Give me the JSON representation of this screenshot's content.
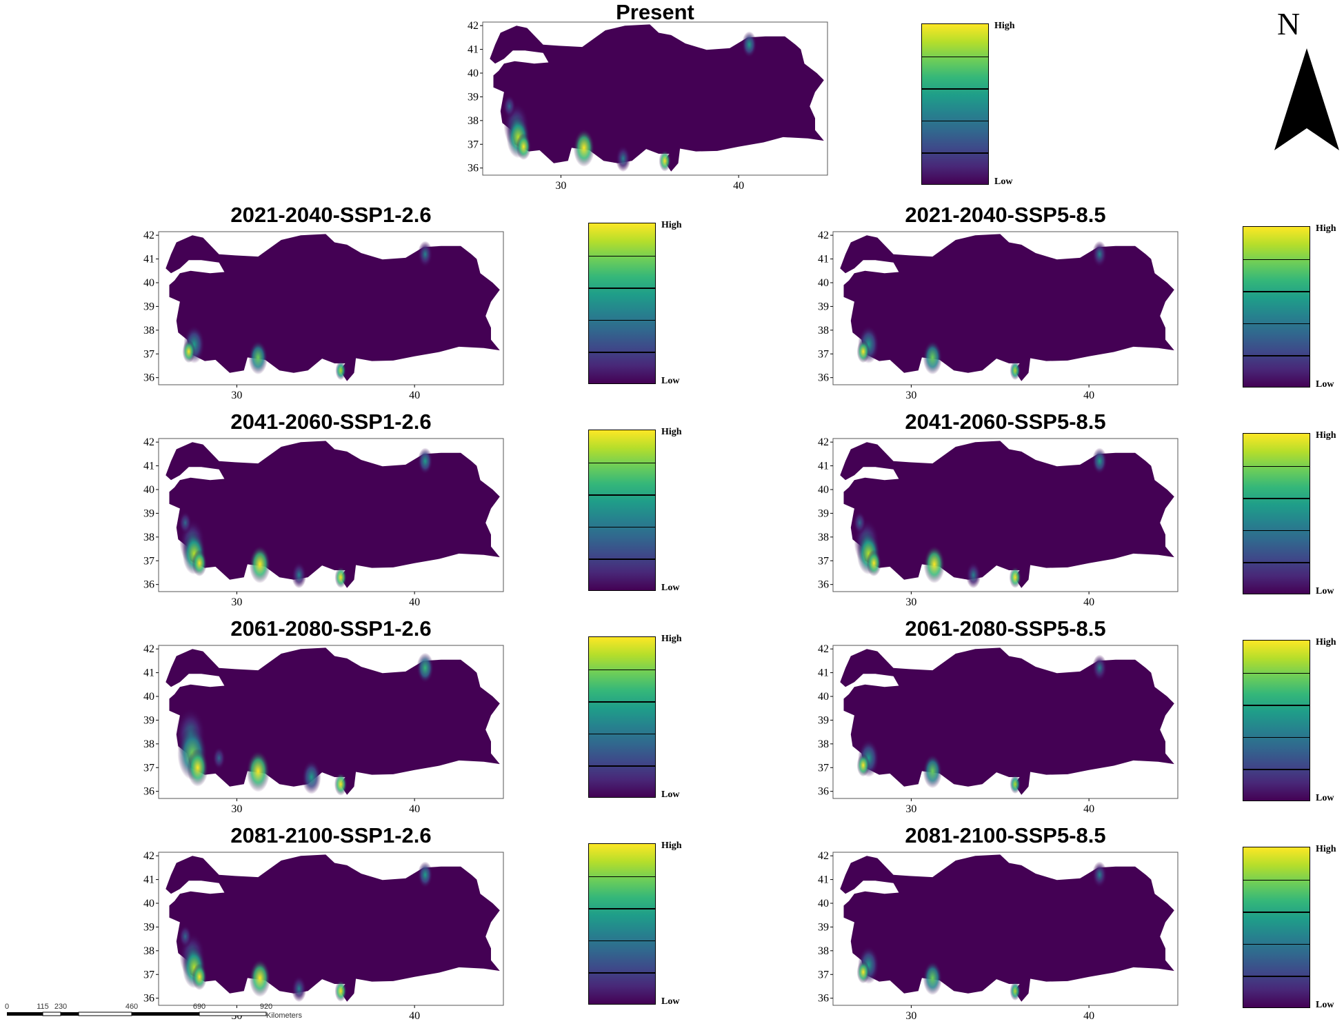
{
  "north_label": "N",
  "colors": {
    "background": "#440154",
    "ramp": [
      "#fde725",
      "#b5de2b",
      "#6ece58",
      "#35b779",
      "#1f9e89",
      "#26828e",
      "#31688e",
      "#3e4989",
      "#482878",
      "#440154"
    ]
  },
  "legend": {
    "high": "High",
    "low": "Low"
  },
  "axes": {
    "lat_ticks": [
      "42",
      "41",
      "40",
      "39",
      "38",
      "37",
      "36"
    ],
    "lon_ticks": [
      "30",
      "40"
    ]
  },
  "panels": [
    {
      "title": "Present",
      "suitability": "medium"
    },
    {
      "title": "2021-2040-SSP1-2.6",
      "suitability": "low"
    },
    {
      "title": "2021-2040-SSP5-8.5",
      "suitability": "low"
    },
    {
      "title": "2041-2060-SSP1-2.6",
      "suitability": "medium"
    },
    {
      "title": "2041-2060-SSP5-8.5",
      "suitability": "medium"
    },
    {
      "title": "2061-2080-SSP1-2.6",
      "suitability": "high"
    },
    {
      "title": "2061-2080-SSP5-8.5",
      "suitability": "low"
    },
    {
      "title": "2081-2100-SSP1-2.6",
      "suitability": "medium"
    },
    {
      "title": "2081-2100-SSP5-8.5",
      "suitability": "low"
    }
  ],
  "scale_bar": {
    "ticks": [
      "0",
      "115",
      "230",
      "460",
      "690",
      "920"
    ],
    "unit": "Kilometers"
  }
}
